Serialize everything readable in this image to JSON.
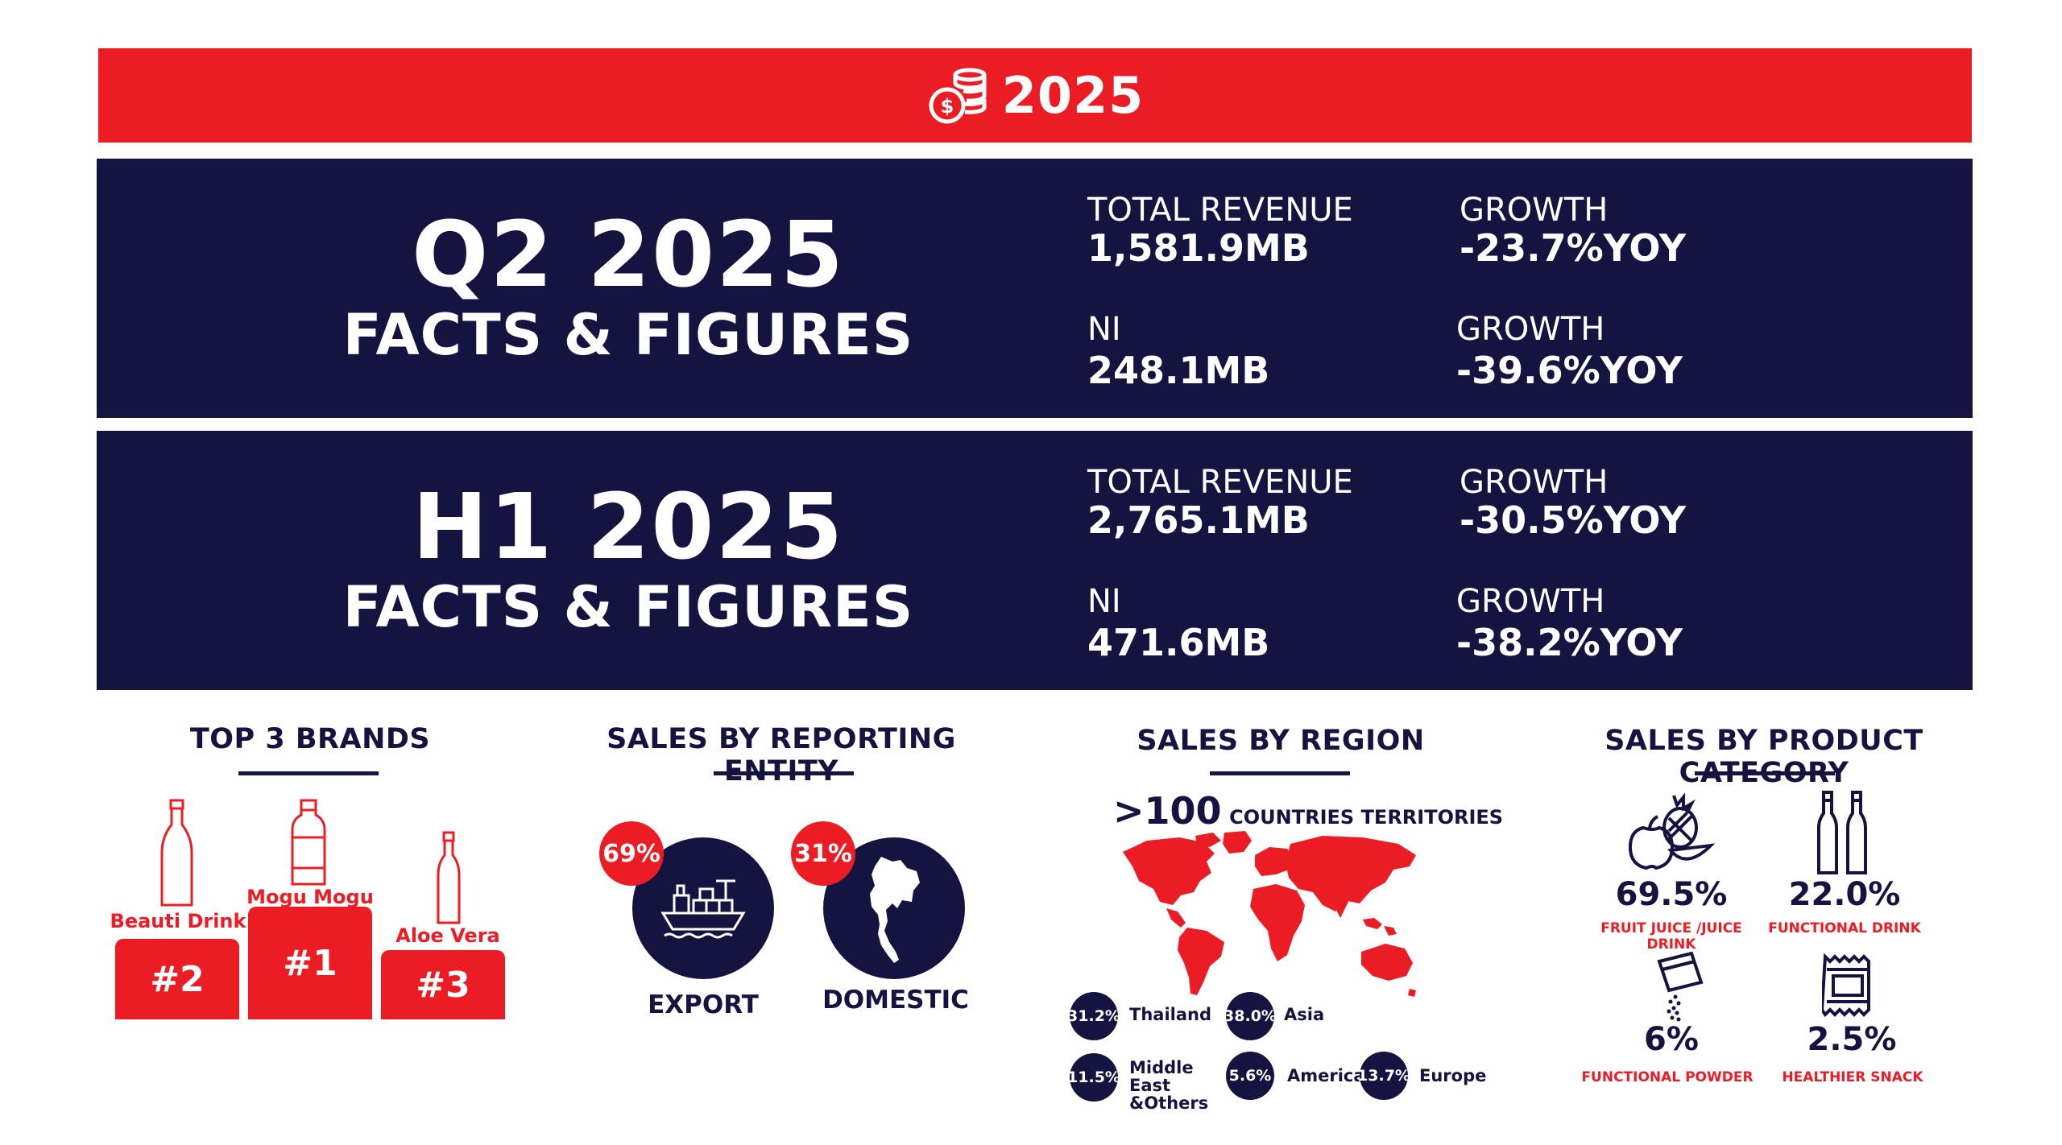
{
  "header": {
    "year": "2025"
  },
  "q2": {
    "title": "Q2 2025",
    "subtitle": "FACTS & FIGURES",
    "revenue_label": "TOTAL REVENUE",
    "revenue_value": "1,581.9MB",
    "revenue_growth_label": "GROWTH",
    "revenue_growth_value": "-23.7%YOY",
    "ni_label": "NI",
    "ni_value": "248.1MB",
    "ni_growth_label": "GROWTH",
    "ni_growth_value": "-39.6%YOY"
  },
  "h1": {
    "title": "H1 2025",
    "subtitle": "FACTS & FIGURES",
    "revenue_label": "TOTAL REVENUE",
    "revenue_value": "2,765.1MB",
    "revenue_growth_label": "GROWTH",
    "revenue_growth_value": "-30.5%YOY",
    "ni_label": "NI",
    "ni_value": "471.6MB",
    "ni_growth_label": "GROWTH",
    "ni_growth_value": "-38.2%YOY"
  },
  "brands": {
    "title": "TOP 3 BRANDS",
    "items": [
      {
        "name": "Beauti Drink",
        "rank": "#2"
      },
      {
        "name": "Mogu Mogu",
        "rank": "#1"
      },
      {
        "name": "Aloe Vera",
        "rank": "#3"
      }
    ]
  },
  "entity": {
    "title": "SALES BY REPORTING ENTITY",
    "items": [
      {
        "label": "EXPORT",
        "pct": "69%",
        "icon": "cargo-ship-icon"
      },
      {
        "label": "DOMESTIC",
        "pct": "31%",
        "icon": "thailand-map-icon"
      }
    ]
  },
  "region": {
    "title": "SALES BY REGION",
    "countries_count": ">100",
    "countries_text": "COUNTRIES TERRITORIES",
    "items": [
      {
        "pct": "31.2%",
        "label": "Thailand"
      },
      {
        "pct": "38.0%",
        "label": "Asia"
      },
      {
        "pct": "11.5%",
        "label": "Middle East &Others"
      },
      {
        "pct": "5.6%",
        "label": "America"
      },
      {
        "pct": "13.7%",
        "label": "Europe"
      }
    ]
  },
  "product": {
    "title": "SALES BY PRODUCT CATEGORY",
    "items": [
      {
        "pct": "69.5%",
        "label": "FRUIT JUICE /JUICE DRINK",
        "icon": "fruit-icon"
      },
      {
        "pct": "22.0%",
        "label": "FUNCTIONAL DRINK",
        "icon": "bottles-icon"
      },
      {
        "pct": "6%",
        "label": "FUNCTIONAL POWDER",
        "icon": "powder-sachet-icon"
      },
      {
        "pct": "2.5%",
        "label": "HEALTHIER SNACK",
        "icon": "snack-bar-icon"
      }
    ]
  },
  "colors": {
    "red": "#ec1c24",
    "navy": "#15133f"
  }
}
